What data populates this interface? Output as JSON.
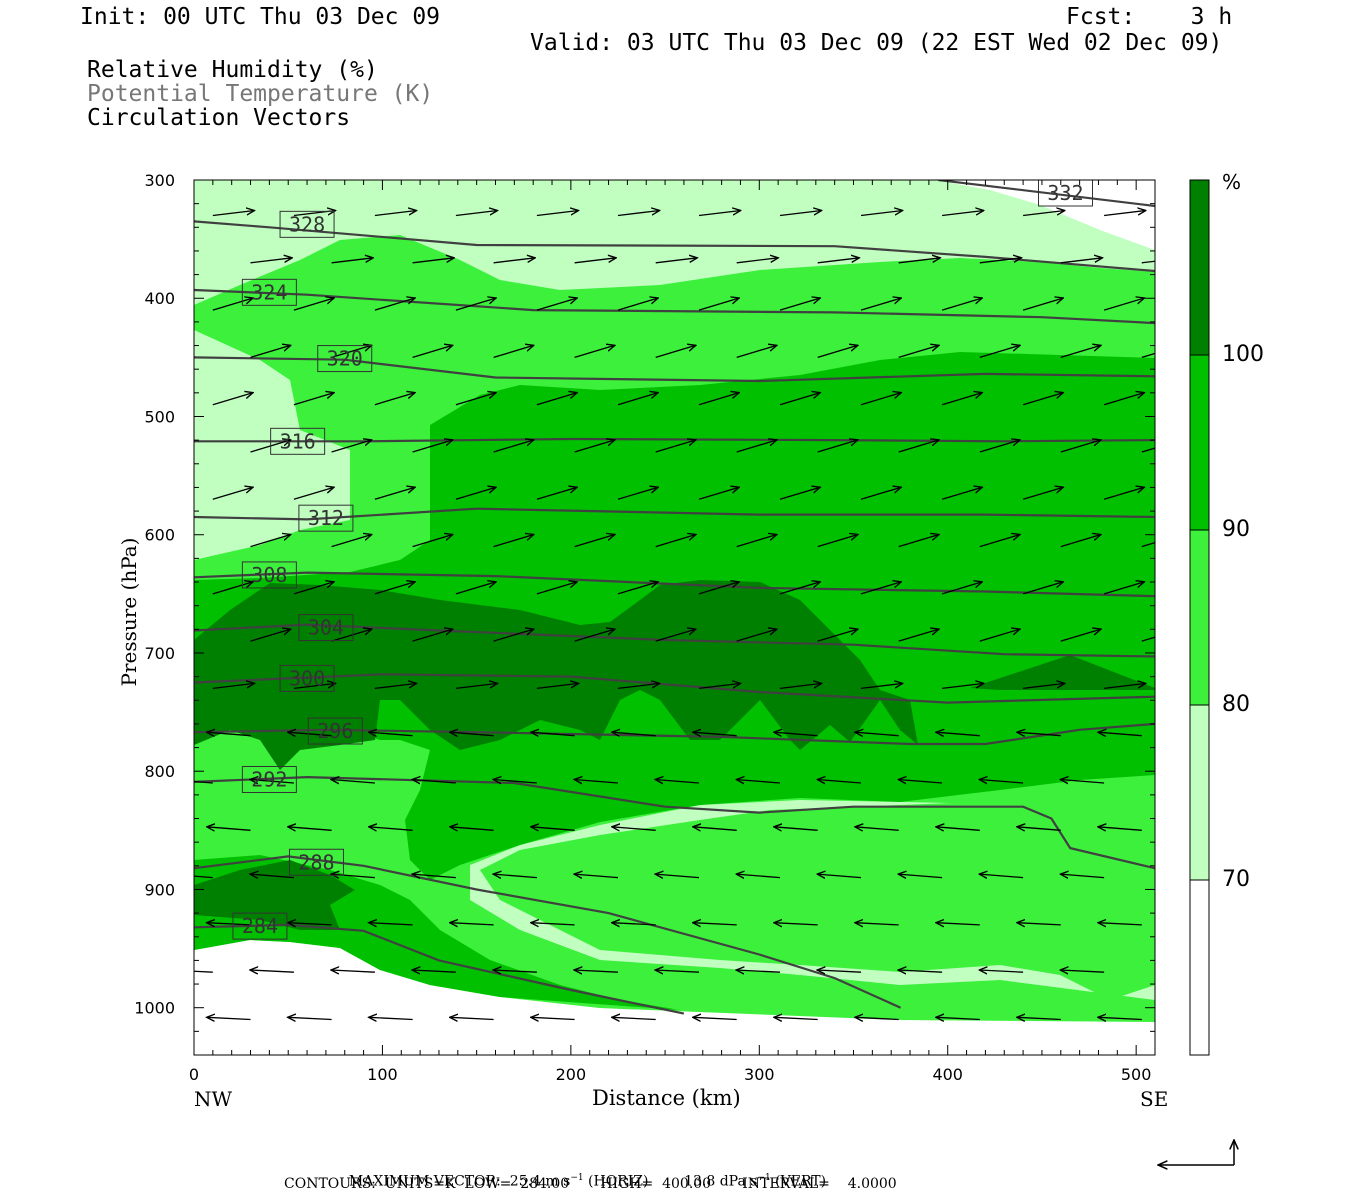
{
  "header": {
    "init": "Init: 00 UTC Thu 03 Dec 09",
    "fcst": "Fcst:    3 h",
    "valid": "Valid: 03 UTC Thu 03 Dec 09 (22 EST Wed 02 Dec 09)",
    "fields": [
      "Relative Humidity (%)",
      "Potential Temperature (K)",
      "Circulation Vectors"
    ]
  },
  "colors": {
    "rh_70_80": "#c0ffc0",
    "rh_80_90": "#3cf03c",
    "rh_90_100": "#00c000",
    "rh_100": "#008000",
    "theta_contour": "#404040"
  },
  "chart_data": {
    "type": "cross-section",
    "xlabel": "Distance (km)",
    "ylabel": "Pressure (hPa)",
    "x_ticks": [
      "0",
      "100",
      "200",
      "300",
      "400",
      "500"
    ],
    "y_ticks": [
      "300",
      "400",
      "500",
      "600",
      "700",
      "800",
      "900",
      "1000"
    ],
    "xlim": [
      0,
      510
    ],
    "ylim": [
      1040,
      300
    ],
    "left_end_label": "NW",
    "right_end_label": "SE",
    "colorbar": {
      "unit": "%",
      "levels": [
        "100",
        "90",
        "80",
        "70"
      ]
    },
    "theta_contours": [
      {
        "label": "332",
        "pts": [
          [
            395,
            300
          ],
          [
            510,
            322
          ]
        ]
      },
      {
        "label": "328",
        "pts": [
          [
            0,
            335
          ],
          [
            40,
            340
          ],
          [
            150,
            355
          ],
          [
            340,
            356
          ],
          [
            420,
            365
          ],
          [
            510,
            377
          ]
        ]
      },
      {
        "label": "324",
        "pts": [
          [
            0,
            393
          ],
          [
            60,
            397
          ],
          [
            180,
            410
          ],
          [
            340,
            412
          ],
          [
            450,
            416
          ],
          [
            510,
            421
          ]
        ]
      },
      {
        "label": "320",
        "pts": [
          [
            0,
            450
          ],
          [
            80,
            452
          ],
          [
            160,
            467
          ],
          [
            300,
            470
          ],
          [
            420,
            464
          ],
          [
            510,
            466
          ]
        ]
      },
      {
        "label": "316",
        "pts": [
          [
            0,
            521
          ],
          [
            90,
            521
          ],
          [
            200,
            519
          ],
          [
            340,
            520
          ],
          [
            430,
            521
          ],
          [
            510,
            520
          ]
        ]
      },
      {
        "label": "312",
        "pts": [
          [
            0,
            585
          ],
          [
            60,
            587
          ],
          [
            150,
            578
          ],
          [
            300,
            583
          ],
          [
            420,
            583
          ],
          [
            510,
            585
          ]
        ]
      },
      {
        "label": "308",
        "pts": [
          [
            0,
            636
          ],
          [
            60,
            632
          ],
          [
            160,
            635
          ],
          [
            300,
            645
          ],
          [
            420,
            648
          ],
          [
            510,
            652
          ]
        ]
      },
      {
        "label": "304",
        "pts": [
          [
            0,
            681
          ],
          [
            60,
            676
          ],
          [
            130,
            681
          ],
          [
            250,
            689
          ],
          [
            350,
            693
          ],
          [
            430,
            701
          ],
          [
            510,
            703
          ]
        ]
      },
      {
        "label": "300",
        "pts": [
          [
            0,
            725
          ],
          [
            100,
            718
          ],
          [
            200,
            720
          ],
          [
            300,
            733
          ],
          [
            400,
            742
          ],
          [
            510,
            737
          ]
        ]
      },
      {
        "label": "296",
        "pts": [
          [
            0,
            767
          ],
          [
            70,
            765
          ],
          [
            150,
            767
          ],
          [
            280,
            771
          ],
          [
            380,
            777
          ],
          [
            420,
            777
          ],
          [
            470,
            765
          ],
          [
            510,
            760
          ]
        ]
      },
      {
        "label": "292",
        "pts": [
          [
            0,
            809
          ],
          [
            60,
            805
          ],
          [
            170,
            810
          ],
          [
            250,
            830
          ],
          [
            300,
            835
          ],
          [
            350,
            830
          ],
          [
            440,
            830
          ],
          [
            455,
            840
          ],
          [
            465,
            865
          ],
          [
            510,
            882
          ]
        ]
      },
      {
        "label": "288",
        "pts": [
          [
            0,
            882
          ],
          [
            50,
            872
          ],
          [
            90,
            880
          ],
          [
            150,
            900
          ],
          [
            220,
            920
          ],
          [
            300,
            955
          ],
          [
            340,
            975
          ],
          [
            375,
            1000
          ]
        ]
      },
      {
        "label": "284",
        "pts": [
          [
            0,
            932
          ],
          [
            50,
            930
          ],
          [
            90,
            935
          ],
          [
            130,
            960
          ],
          [
            200,
            985
          ],
          [
            260,
            1005
          ]
        ]
      }
    ],
    "max_vector_horiz": "25.4 m s-1 (HORIZ)",
    "max_vector_vert": "13.8 dPa s-1 (VERT)",
    "contours_units": "K",
    "contours_low": "284.00",
    "contours_high": "400.00",
    "contours_interval": "4.0000"
  },
  "footer": {
    "maxvec_prefix": "MAXIMUM VECTOR:  25.4 m s",
    "maxvec_mid": " (HORIZ)        13.8 dPa s",
    "maxvec_end": " (VERT)",
    "contours_line": "CONTOURS:  UNITS=K  LOW=  284.00       HIGH=  400.00       INTERVAL=    4.0000"
  }
}
